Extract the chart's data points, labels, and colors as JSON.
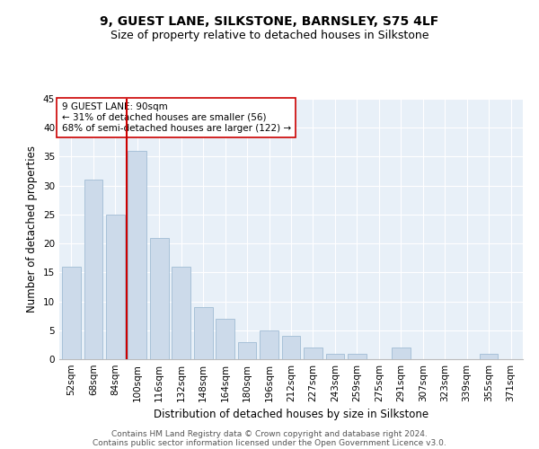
{
  "title": "9, GUEST LANE, SILKSTONE, BARNSLEY, S75 4LF",
  "subtitle": "Size of property relative to detached houses in Silkstone",
  "xlabel": "Distribution of detached houses by size in Silkstone",
  "ylabel": "Number of detached properties",
  "categories": [
    "52sqm",
    "68sqm",
    "84sqm",
    "100sqm",
    "116sqm",
    "132sqm",
    "148sqm",
    "164sqm",
    "180sqm",
    "196sqm",
    "212sqm",
    "227sqm",
    "243sqm",
    "259sqm",
    "275sqm",
    "291sqm",
    "307sqm",
    "323sqm",
    "339sqm",
    "355sqm",
    "371sqm"
  ],
  "values": [
    16,
    31,
    25,
    36,
    21,
    16,
    9,
    7,
    3,
    5,
    4,
    2,
    1,
    1,
    0,
    2,
    0,
    0,
    0,
    1,
    0
  ],
  "bar_color": "#ccdaea",
  "bar_edge_color": "#a0bcd4",
  "vline_x": 2.5,
  "vline_color": "#cc0000",
  "annotation_text": "9 GUEST LANE: 90sqm\n← 31% of detached houses are smaller (56)\n68% of semi-detached houses are larger (122) →",
  "annotation_box_color": "#ffffff",
  "annotation_box_edge": "#cc0000",
  "ylim": [
    0,
    45
  ],
  "yticks": [
    0,
    5,
    10,
    15,
    20,
    25,
    30,
    35,
    40,
    45
  ],
  "background_color": "#e8f0f8",
  "footer1": "Contains HM Land Registry data © Crown copyright and database right 2024.",
  "footer2": "Contains public sector information licensed under the Open Government Licence v3.0.",
  "title_fontsize": 10,
  "subtitle_fontsize": 9,
  "xlabel_fontsize": 8.5,
  "ylabel_fontsize": 8.5,
  "tick_fontsize": 7.5,
  "annotation_fontsize": 7.5,
  "footer_fontsize": 6.5,
  "grid_color": "#ffffff",
  "fig_width": 6.0,
  "fig_height": 5.0,
  "dpi": 100
}
